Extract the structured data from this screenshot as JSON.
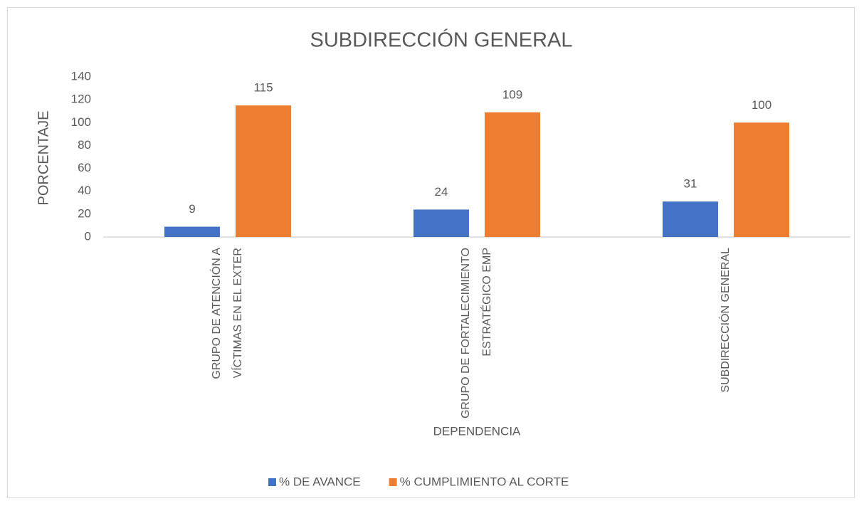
{
  "chart_data": {
    "type": "bar",
    "title": "SUBDIRECCIÓN GENERAL",
    "x_label": "DEPENDENCIA",
    "y_label": "PORCENTAJE",
    "categories": [
      "GRUPO DE ATENCIÓN A VÍCTIMAS EN EL EXTER",
      "GRUPO DE FORTALECIMIENTO ESTRATÉGICO EMP",
      "SUBDIRECCIÓN GENERAL"
    ],
    "series": [
      {
        "name": "% DE AVANCE",
        "color": "#4472c4",
        "values": [
          9,
          24,
          31
        ]
      },
      {
        "name": "% CUMPLIMIENTO AL CORTE",
        "color": "#ed7d31",
        "values": [
          115,
          109,
          100
        ]
      }
    ],
    "ylim": [
      0,
      140
    ],
    "yticks": [
      0,
      20,
      40,
      60,
      80,
      100,
      120,
      140
    ],
    "grid": false,
    "legend": "bottom"
  }
}
